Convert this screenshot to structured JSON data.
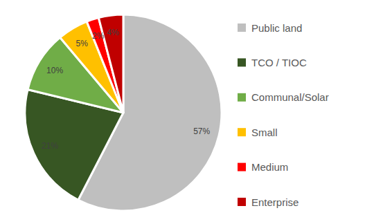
{
  "chart_data": {
    "type": "pie",
    "categories": [
      "Public land",
      "TCO / TIOC",
      "Communal/Solar",
      "Small",
      "Medium",
      "Enterprise"
    ],
    "values": [
      57,
      21,
      10,
      5,
      2,
      4
    ],
    "value_labels": [
      "57%",
      "21%",
      "10%",
      "5%",
      "2%",
      "4%"
    ],
    "colors": [
      "#bfbfbf",
      "#375623",
      "#70ad47",
      "#ffc000",
      "#ff0000",
      "#c00000"
    ],
    "data_labels": true,
    "legend": "right"
  }
}
